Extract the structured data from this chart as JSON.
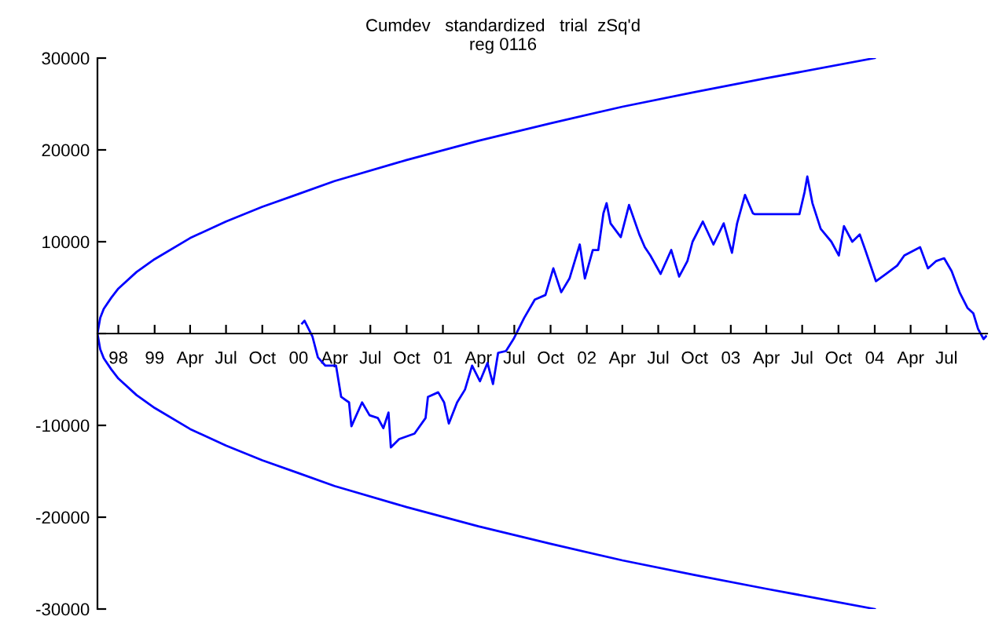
{
  "chart_data": {
    "type": "line",
    "title": "Cumdev   standardized   trial  zSq'd",
    "subtitle": "reg 0116",
    "xlim": [
      "1998-08-09",
      "2004-10-12"
    ],
    "ylim": [
      -30000,
      30000
    ],
    "xticks": [
      {
        "value": "1998-10-01",
        "label": "98"
      },
      {
        "value": "1999-01-01",
        "label": "99"
      },
      {
        "value": "1999-04-01",
        "label": "Apr"
      },
      {
        "value": "1999-07-01",
        "label": "Jul"
      },
      {
        "value": "1999-10-01",
        "label": "Oct"
      },
      {
        "value": "2000-01-01",
        "label": "00"
      },
      {
        "value": "2000-04-01",
        "label": "Apr"
      },
      {
        "value": "2000-07-01",
        "label": "Jul"
      },
      {
        "value": "2000-10-01",
        "label": "Oct"
      },
      {
        "value": "2001-01-01",
        "label": "01"
      },
      {
        "value": "2001-04-01",
        "label": "Apr"
      },
      {
        "value": "2001-07-01",
        "label": "Jul"
      },
      {
        "value": "2001-10-01",
        "label": "Oct"
      },
      {
        "value": "2002-01-01",
        "label": "02"
      },
      {
        "value": "2002-04-01",
        "label": "Apr"
      },
      {
        "value": "2002-07-01",
        "label": "Jul"
      },
      {
        "value": "2002-10-01",
        "label": "Oct"
      },
      {
        "value": "2003-01-01",
        "label": "03"
      },
      {
        "value": "2003-04-01",
        "label": "Apr"
      },
      {
        "value": "2003-07-01",
        "label": "Jul"
      },
      {
        "value": "2003-10-01",
        "label": "Oct"
      },
      {
        "value": "2004-01-01",
        "label": "04"
      },
      {
        "value": "2004-04-01",
        "label": "Apr"
      },
      {
        "value": "2004-07-01",
        "label": "Jul"
      }
    ],
    "yticks": [
      -30000,
      -20000,
      -10000,
      {
        "value": 0,
        "label": null
      },
      10000,
      20000,
      30000
    ],
    "grid": false,
    "legend": false,
    "marker": "none",
    "line_style": "solid",
    "series": [
      {
        "color": "#0000ff",
        "x": [
          "2004-01-01",
          "2003-04-01",
          "2002-10-01",
          "2002-04-01",
          "2001-10-01",
          "2001-04-01",
          "2000-10-01",
          "2000-04-01",
          "2000-01-01",
          "1999-10-01",
          "1999-07-01",
          "1999-04-01",
          "1999-01-01",
          "1998-11-16",
          "1998-10-01",
          "1998-09-13",
          "1998-08-25",
          "1998-08-16",
          "1998-08-09",
          "1998-08-16",
          "1998-08-25",
          "1998-09-13",
          "1998-10-01",
          "1998-11-16",
          "1999-01-01",
          "1999-04-01",
          "1999-07-01",
          "1999-10-01",
          "2000-01-01",
          "2000-04-01",
          "2000-10-01",
          "2001-04-01",
          "2001-10-01",
          "2002-04-01",
          "2002-10-01",
          "2003-04-01",
          "2004-01-01"
        ],
        "values": [
          30000,
          27800,
          26300,
          24700,
          22900,
          21000,
          18900,
          16600,
          15200,
          13800,
          12200,
          10400,
          8100,
          6700,
          4900,
          3900,
          2700,
          1700,
          0,
          -1700,
          -2700,
          -3900,
          -4900,
          -6700,
          -8100,
          -10400,
          -12200,
          -13800,
          -15200,
          -16600,
          -18900,
          -21000,
          -22900,
          -24700,
          -26300,
          -27800,
          -30000
        ]
      },
      {
        "color": "#0000ff",
        "x": [
          "2000-01-10",
          "2000-01-16",
          "2000-02-05",
          "2000-02-19",
          "2000-03-09",
          "2000-04-05",
          "2000-04-18",
          "2000-05-08",
          "2000-05-14",
          "2000-06-10",
          "2000-06-29",
          "2000-07-20",
          "2000-08-03",
          "2000-08-16",
          "2000-08-22",
          "2000-09-12",
          "2000-10-21",
          "2000-11-18",
          "2000-11-24",
          "2000-12-20",
          "2001-01-04",
          "2001-01-16",
          "2001-02-06",
          "2001-02-26",
          "2001-03-16",
          "2001-04-05",
          "2001-04-24",
          "2001-05-08",
          "2001-05-21",
          "2001-06-10",
          "2001-06-29",
          "2001-07-26",
          "2001-08-22",
          "2001-09-18",
          "2001-10-08",
          "2001-10-28",
          "2001-11-18",
          "2001-12-14",
          "2001-12-27",
          "2002-01-16",
          "2002-01-30",
          "2002-02-12",
          "2002-02-20",
          "2002-03-02",
          "2002-03-28",
          "2002-04-18",
          "2002-05-14",
          "2002-05-28",
          "2002-06-11",
          "2002-07-07",
          "2002-08-03",
          "2002-08-23",
          "2002-09-13",
          "2002-09-26",
          "2002-10-22",
          "2002-11-18",
          "2002-12-14",
          "2003-01-04",
          "2003-01-17",
          "2003-02-06",
          "2003-02-26",
          "2003-03-03",
          "2003-06-24",
          "2003-07-07",
          "2003-07-14",
          "2003-07-27",
          "2003-08-17",
          "2003-09-13",
          "2003-10-02",
          "2003-10-15",
          "2003-11-05",
          "2003-11-24",
          "2003-12-08",
          "2004-01-04",
          "2004-01-30",
          "2004-02-27",
          "2004-03-16",
          "2004-04-25",
          "2004-05-15",
          "2004-06-05",
          "2004-06-25",
          "2004-07-14",
          "2004-08-03",
          "2004-08-23",
          "2004-09-07",
          "2004-09-19",
          "2004-10-03",
          "2004-10-09"
        ],
        "values": [
          1100,
          1400,
          -300,
          -2600,
          -3500,
          -3500,
          -6900,
          -7500,
          -10100,
          -7500,
          -8900,
          -9200,
          -10300,
          -8600,
          -12400,
          -11500,
          -10900,
          -9200,
          -6900,
          -6400,
          -7500,
          -9800,
          -7500,
          -6100,
          -3500,
          -5200,
          -3200,
          -5500,
          -2100,
          -1900,
          -600,
          1700,
          3700,
          4200,
          7100,
          4500,
          6000,
          9700,
          6000,
          9100,
          9100,
          13100,
          14200,
          12000,
          10500,
          14000,
          10800,
          9400,
          8500,
          6500,
          9100,
          6200,
          7900,
          10000,
          12200,
          9700,
          12000,
          8800,
          12000,
          15100,
          13100,
          13000,
          13000,
          15400,
          17100,
          14200,
          11400,
          10000,
          8500,
          11700,
          10000,
          10800,
          9100,
          5700,
          6500,
          7400,
          8500,
          9400,
          7100,
          7900,
          8200,
          6800,
          4500,
          2800,
          2200,
          500,
          -600,
          -300
        ]
      }
    ]
  }
}
